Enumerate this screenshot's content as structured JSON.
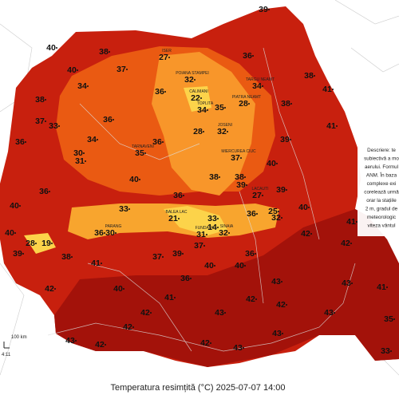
{
  "title": "Temperatura resimțită (°C) 2025-07-07 14:00",
  "description": [
    "Descriere: te",
    "subiectivă a mo",
    "aerului. Formul",
    "ANM. În baza",
    "complexe exi",
    "corelează urmă",
    "orar la stațiile",
    "2 m, gradul de",
    "meteorologic",
    "viteza vântul"
  ],
  "scale": "100 km",
  "time_note": "4:11",
  "stations": [
    {
      "value": 39
    },
    {
      "value": 27,
      "name": "ISER"
    },
    {
      "value": 38
    },
    {
      "value": 40
    },
    {
      "value": 40
    },
    {
      "value": 37
    },
    {
      "value": 32,
      "name": "POIANA STAMPEI"
    },
    {
      "value": 36
    },
    {
      "value": 38
    },
    {
      "value": 34
    },
    {
      "value": 36
    },
    {
      "value": 22,
      "name": "CALIMANI"
    },
    {
      "value": 34,
      "name": "TARGU NEAMT"
    },
    {
      "value": 38
    },
    {
      "value": 38
    },
    {
      "value": 35
    },
    {
      "value": 28,
      "name": "PIATRA NEAMT"
    },
    {
      "value": 34,
      "name": "TOPLITA"
    },
    {
      "value": 41
    },
    {
      "value": 41
    },
    {
      "value": 33
    },
    {
      "value": 37
    },
    {
      "value": 36
    },
    {
      "value": 28
    },
    {
      "value": 32,
      "name": "JOSENI"
    },
    {
      "value": 39
    },
    {
      "value": 34
    },
    {
      "value": 36
    },
    {
      "value": 36
    },
    {
      "value": 30
    },
    {
      "value": 31
    },
    {
      "value": 35,
      "name": "TARNAVENI"
    },
    {
      "value": 37,
      "name": "MIERCUREA CIUC"
    },
    {
      "value": 40
    },
    {
      "value": 38
    },
    {
      "value": 38
    },
    {
      "value": 39
    },
    {
      "value": 40
    },
    {
      "value": 36
    },
    {
      "value": 36
    },
    {
      "value": 27,
      "name": "LACAUTI"
    },
    {
      "value": 39
    },
    {
      "value": 40
    },
    {
      "value": 33
    },
    {
      "value": 21,
      "name": "BALEA LAC"
    },
    {
      "value": 33
    },
    {
      "value": 36
    },
    {
      "value": 25
    },
    {
      "value": 32
    },
    {
      "value": 40
    },
    {
      "value": 41
    },
    {
      "value": 40
    },
    {
      "value": 28
    },
    {
      "value": 19
    },
    {
      "value": 36
    },
    {
      "value": 30,
      "name": "PARANG"
    },
    {
      "value": 14
    },
    {
      "value": 31,
      "name": "FUNDATA"
    },
    {
      "value": 32,
      "name": "SINAIA"
    },
    {
      "value": 42
    },
    {
      "value": 42
    },
    {
      "value": 39
    },
    {
      "value": 37
    },
    {
      "value": 37
    },
    {
      "value": 39
    },
    {
      "value": 36
    },
    {
      "value": 40
    },
    {
      "value": 40
    },
    {
      "value": 41
    },
    {
      "value": 38
    },
    {
      "value": 36
    },
    {
      "value": 42
    },
    {
      "value": 43
    },
    {
      "value": 43
    },
    {
      "value": 40
    },
    {
      "value": 41
    },
    {
      "value": 42
    },
    {
      "value": 42
    },
    {
      "value": 43
    },
    {
      "value": 42
    },
    {
      "value": 41
    },
    {
      "value": 43
    },
    {
      "value": 35
    },
    {
      "value": 42
    },
    {
      "value": 43
    },
    {
      "value": 43
    },
    {
      "value": 42
    },
    {
      "value": 42
    },
    {
      "value": 43
    },
    {
      "value": 33
    }
  ]
}
